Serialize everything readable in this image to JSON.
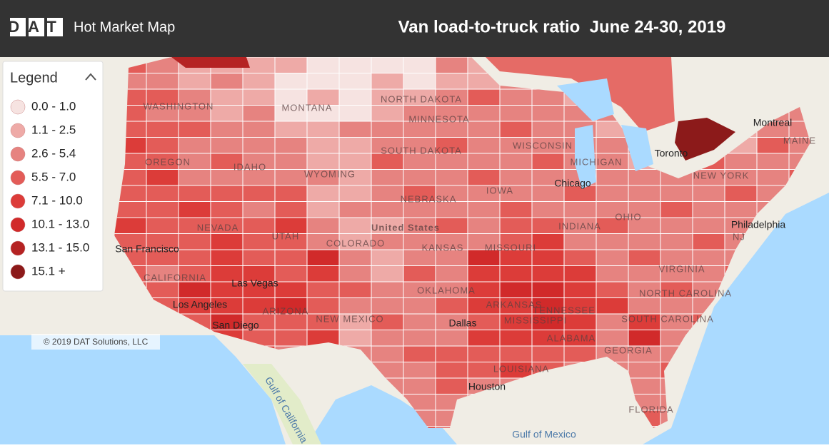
{
  "header": {
    "logo": "DAT",
    "app_name": "Hot Market Map",
    "title": "Van load-to-truck ratio  June 24-30, 2019"
  },
  "legend": {
    "title": "Legend",
    "items": [
      {
        "label": "0.0 - 1.0",
        "color": "#f6e3e1"
      },
      {
        "label": "1.1 - 2.5",
        "color": "#eeaaa7"
      },
      {
        "label": "2.6 - 5.4",
        "color": "#e68380"
      },
      {
        "label": "5.5 - 7.0",
        "color": "#e35c58"
      },
      {
        "label": "7.1 - 10.0",
        "color": "#dc3c39"
      },
      {
        "label": "10.1 - 13.0",
        "color": "#d12a2a"
      },
      {
        "label": "13.1 - 15.0",
        "color": "#b52323"
      },
      {
        "label": "15.1 +",
        "color": "#8c1a1a"
      }
    ]
  },
  "map": {
    "labels": [
      "WASHINGTON",
      "MONTANA",
      "NORTH DAKOTA",
      "MINNESOTA",
      "WISCONSIN",
      "MICHIGAN",
      "SOUTH DAKOTA",
      "IDAHO",
      "OREGON",
      "WYOMING",
      "NEBRASKA",
      "IOWA",
      "Chicago",
      "NEVADA",
      "UTAH",
      "COLORADO",
      "United States",
      "KANSAS",
      "MISSOURI",
      "INDIANA",
      "OHIO",
      "San Francisco",
      "CALIFORNIA",
      "Las Vegas",
      "Los Angeles",
      "San Diego",
      "ARIZONA",
      "NEW MEXICO",
      "OKLAHOMA",
      "ARKANSAS",
      "TENNESSEE",
      "Dallas",
      "MISSISSIPPI",
      "ALABAMA",
      "GEORGIA",
      "LOUISIANA",
      "Houston",
      "FLORIDA",
      "Gulf of Mexico",
      "Gulf of California",
      "Toronto",
      "Montreal",
      "MAINE",
      "NEW YORK",
      "Philadelphia",
      "NJ",
      "VIRGINIA",
      "NORTH CAROLINA",
      "SOUTH CAROLINA"
    ],
    "copyright": "© 2019 DAT Solutions, LLC"
  }
}
